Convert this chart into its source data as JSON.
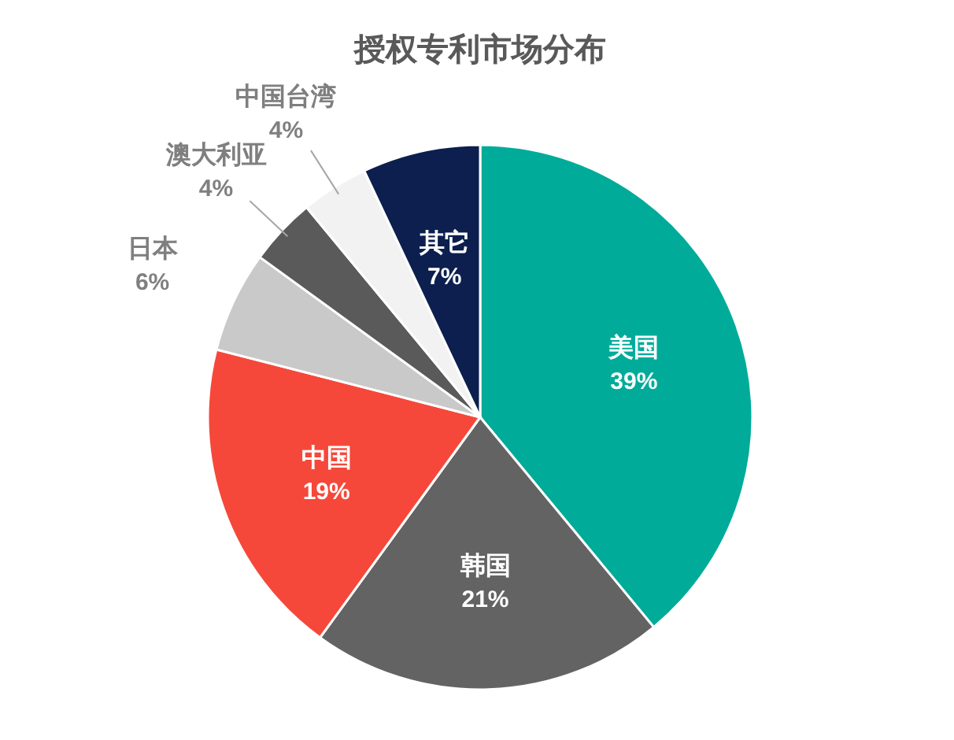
{
  "chart_data": {
    "type": "pie",
    "title": "授权专利市场分布",
    "categories": [
      "美国",
      "韩国",
      "中国",
      "日本",
      "澳大利亚",
      "中国台湾",
      "其它"
    ],
    "values": [
      39,
      21,
      19,
      6,
      4,
      4,
      7
    ],
    "colors": [
      "#00ab9a",
      "#636363",
      "#f5483a",
      "#c9c9c9",
      "#5a5a5a",
      "#f2f2f2",
      "#0c1f4e"
    ],
    "value_labels": [
      "39%",
      "21%",
      "19%",
      "6%",
      "4%",
      "4%",
      "7%"
    ]
  }
}
